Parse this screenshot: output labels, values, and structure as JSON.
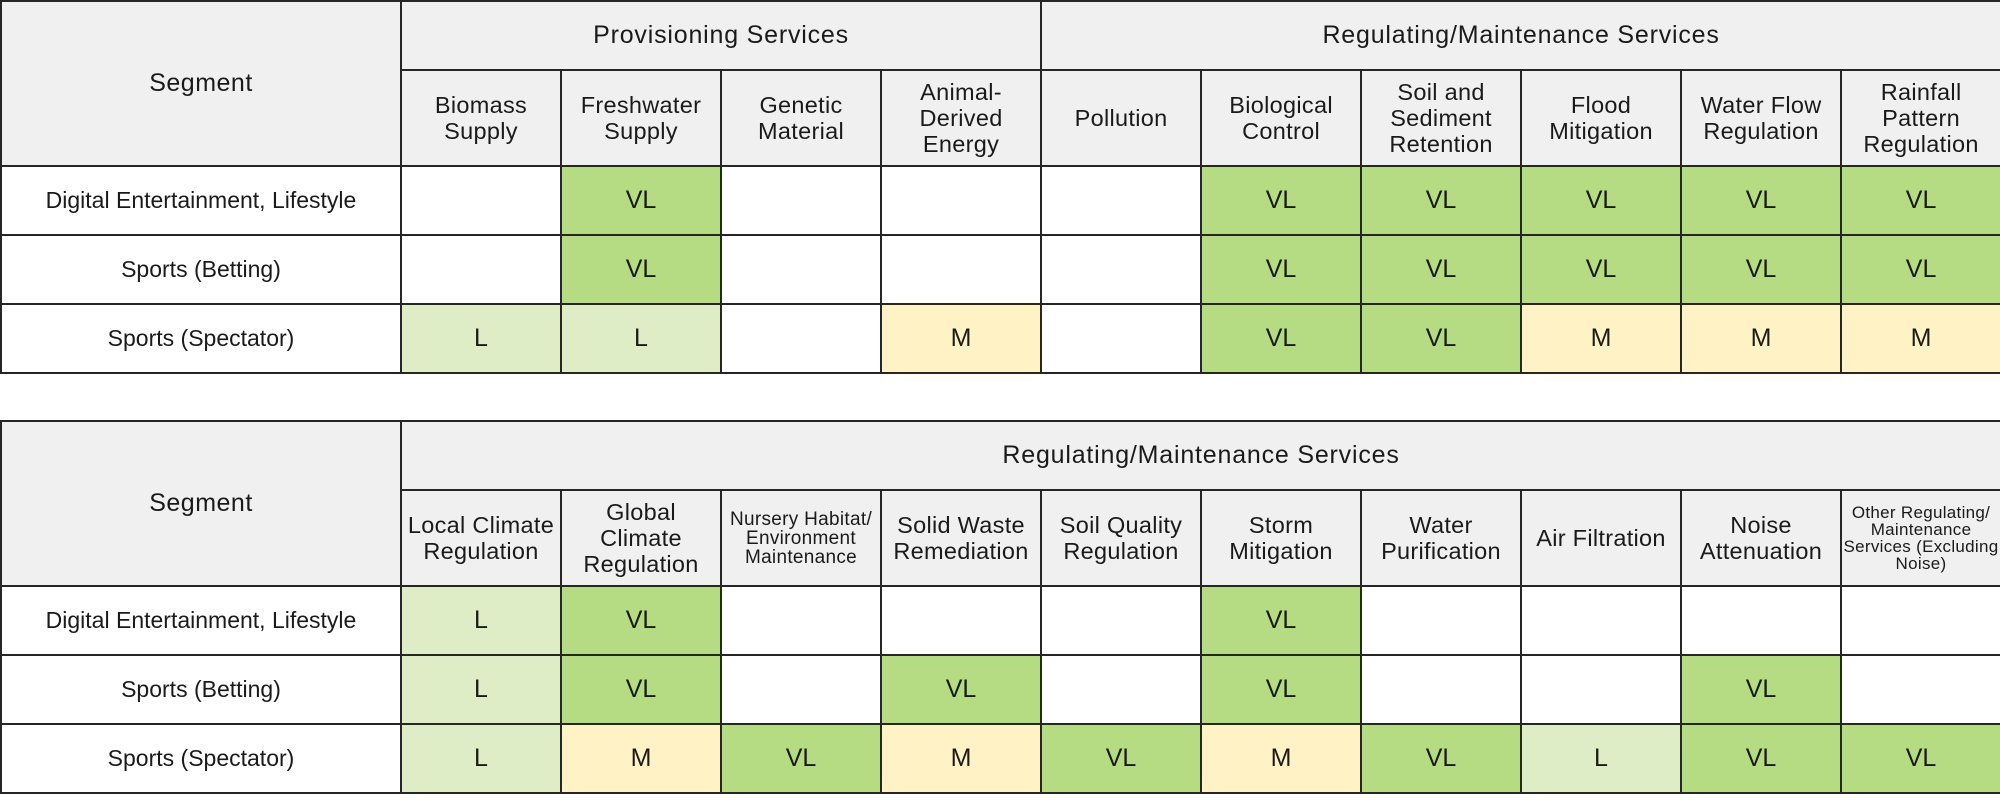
{
  "colors": {
    "VL": "#b5dc82",
    "L": "#dfedc7",
    "M": "#fff2c4",
    "header_bg": "#f0f0f0",
    "border": "#262626"
  },
  "tables": [
    {
      "segment_header": "Segment",
      "groups": [
        {
          "label": "Provisioning Services",
          "span": 4
        },
        {
          "label": "Regulating/Maintenance Services",
          "span": 6
        }
      ],
      "columns": [
        "Biomass Supply",
        "Freshwater Supply",
        "Genetic Material",
        "Animal-Derived Energy",
        "Pollution",
        "Biological Control",
        "Soil and Sediment Retention",
        "Flood Mitigation",
        "Water Flow Regulation",
        "Rainfall Pattern Regulation"
      ],
      "rows": [
        {
          "segment": "Digital Entertainment, Lifestyle",
          "values": [
            "",
            "VL",
            "",
            "",
            "",
            "VL",
            "VL",
            "VL",
            "VL",
            "VL"
          ]
        },
        {
          "segment": "Sports (Betting)",
          "values": [
            "",
            "VL",
            "",
            "",
            "",
            "VL",
            "VL",
            "VL",
            "VL",
            "VL"
          ]
        },
        {
          "segment": "Sports (Spectator)",
          "values": [
            "L",
            "L",
            "",
            "M",
            "",
            "VL",
            "VL",
            "M",
            "M",
            "M"
          ]
        }
      ]
    },
    {
      "segment_header": "Segment",
      "groups": [
        {
          "label": "Regulating/Maintenance Services",
          "span": 10
        }
      ],
      "columns": [
        "Local Climate Regulation",
        "Global Climate Regulation",
        "Nursery Habitat/ Environment Maintenance",
        "Solid Waste Remediation",
        "Soil Quality Regulation",
        "Storm Mitigation",
        "Water Purification",
        "Air Filtration",
        "Noise Attenuation",
        "Other Regulating/ Maintenance Services (Excluding Noise)"
      ],
      "rows": [
        {
          "segment": "Digital Entertainment, Lifestyle",
          "values": [
            "L",
            "VL",
            "",
            "",
            "",
            "VL",
            "",
            "",
            "",
            ""
          ]
        },
        {
          "segment": "Sports (Betting)",
          "values": [
            "L",
            "VL",
            "",
            "VL",
            "",
            "VL",
            "",
            "",
            "VL",
            ""
          ]
        },
        {
          "segment": "Sports (Spectator)",
          "values": [
            "L",
            "M",
            "VL",
            "M",
            "VL",
            "M",
            "VL",
            "L",
            "VL",
            "VL"
          ]
        }
      ]
    }
  ]
}
